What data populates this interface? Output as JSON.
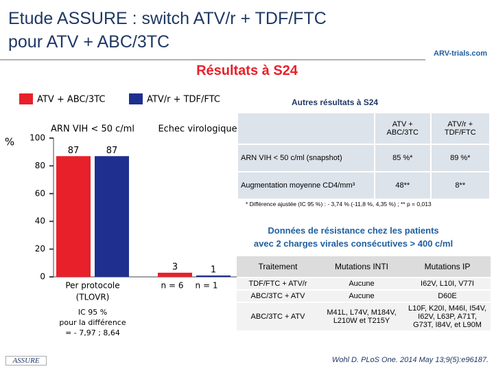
{
  "header": {
    "title_lines": [
      "Etude ASSURE : switch ATV/r + TDF/FTC",
      "pour ATV + ABC/3TC"
    ],
    "logo": "ARV-trials.com",
    "section": "Résultats à S24"
  },
  "chart_data": {
    "type": "bar",
    "ylabel": "%",
    "categories": [
      "ARN VIH < 50 c/ml",
      "Echec virologique"
    ],
    "series": [
      {
        "name": "ATV + ABC/3TC",
        "color": "#e8202a",
        "values": [
          87,
          3
        ]
      },
      {
        "name": "ATV/r + TDF/FTC",
        "color": "#1f2f8f",
        "values": [
          87,
          1
        ]
      }
    ],
    "ylim": [
      0,
      100
    ],
    "yticks": [
      0,
      20,
      40,
      60,
      80,
      100
    ],
    "annotations": [
      "Per protocole",
      "(TLOVR)",
      "n = 6",
      "n = 1",
      "IC 95 %",
      "pour la différence",
      "= - 7,97 ; 8,64"
    ]
  },
  "table1": {
    "title": "Autres résultats à S24",
    "header": [
      "",
      "ATV + ABC/3TC",
      "ATV/r + TDF/FTC"
    ],
    "rows": [
      [
        "ARN VIH < 50 c/ml (snapshot)",
        "85 %*",
        "89 %*"
      ],
      [
        "Augmentation moyenne CD4/mm³",
        "48**",
        "8**"
      ]
    ],
    "footnote": "* Différence ajustée (IC 95 %) : - 3,74 % (-11,8 %, 4,35 %) ; ** p = 0,013"
  },
  "table2": {
    "title_lines": [
      "Données de résistance chez les patients",
      "avec 2 charges virales consécutives > 400 c/ml"
    ],
    "header": [
      "Traitement",
      "Mutations INTI",
      "Mutations IP"
    ],
    "rows": [
      [
        "TDF/FTC + ATV/r",
        "Aucune",
        "I62V, L10I, V77I"
      ],
      [
        "ABC/3TC + ATV",
        "Aucune",
        "D60E"
      ],
      [
        "ABC/3TC + ATV",
        "M41L, L74V, M184V, L210W et T215Y",
        "L10F, K20I, M46I, I54V, I62V, L63P, A71T, G73T, I84V, et L90M"
      ]
    ]
  },
  "footer": {
    "study": "ASSURE",
    "citation": "Wohl D. PLoS One. 2014 May 13;9(5):e96187."
  }
}
